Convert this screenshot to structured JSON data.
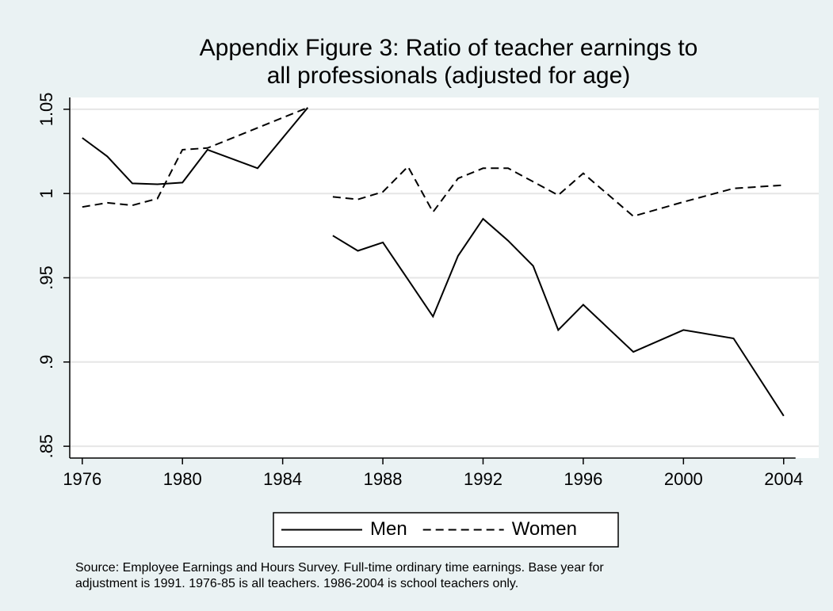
{
  "chart_data": {
    "type": "line",
    "title_lines": [
      "Appendix Figure 3: Ratio of teacher earnings to",
      "all professionals (adjusted for age)"
    ],
    "note_lines": [
      "Source: Employee Earnings and Hours Survey. Full-time ordinary time earnings. Base year for",
      "adjustment is 1991. 1976-85 is all teachers. 1986-2004 is school teachers only."
    ],
    "x": [
      1976,
      1977,
      1978,
      1979,
      1980,
      1981,
      1983,
      1985,
      null,
      1986,
      1987,
      1988,
      1989,
      1990,
      1991,
      1992,
      1993,
      1994,
      1995,
      1996,
      1998,
      2000,
      2002,
      2004
    ],
    "series": [
      {
        "name": "Men",
        "color": "#000000",
        "line_style": "solid",
        "values": [
          1.033,
          1.022,
          1.006,
          1.0055,
          1.0065,
          1.026,
          1.015,
          1.051,
          null,
          0.975,
          0.966,
          0.971,
          0.949,
          0.927,
          0.963,
          0.985,
          0.972,
          0.957,
          0.919,
          0.934,
          0.906,
          0.919,
          0.914,
          0.868
        ]
      },
      {
        "name": "Women",
        "color": "#000000",
        "line_style": "dashed",
        "values": [
          0.992,
          0.9945,
          0.993,
          0.997,
          1.026,
          1.027,
          1.039,
          1.051,
          null,
          0.998,
          0.9965,
          1.001,
          1.016,
          0.989,
          1.009,
          1.015,
          1.015,
          1.007,
          0.999,
          1.012,
          0.9865,
          0.995,
          1.003,
          1.005
        ]
      }
    ],
    "xlim": [
      1975.5,
      2005.4
    ],
    "xticks": [
      1976,
      1980,
      1984,
      1988,
      1992,
      1996,
      2000,
      2004
    ],
    "ylim": [
      0.843,
      1.057
    ],
    "yticks": [
      {
        "value": 0.85,
        "label": ".85"
      },
      {
        "value": 0.9,
        "label": ".9"
      },
      {
        "value": 0.95,
        "label": ".95"
      },
      1,
      1.05
    ],
    "grid": true,
    "legend_position": "bottom"
  }
}
